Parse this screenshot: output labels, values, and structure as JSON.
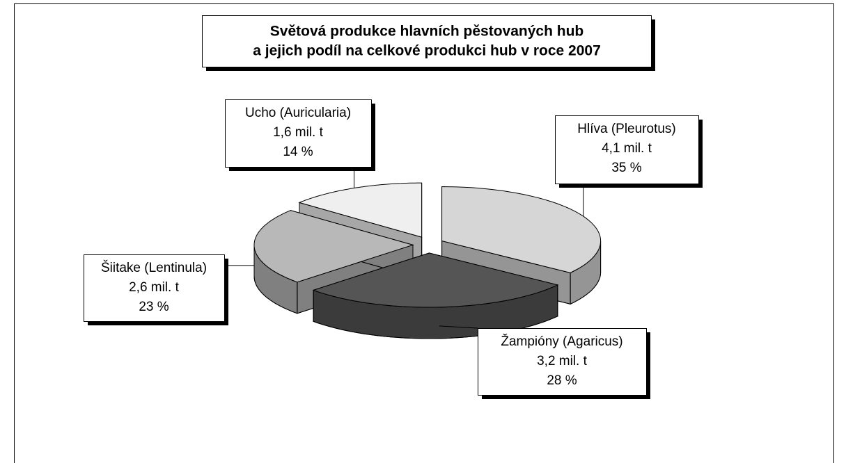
{
  "chart_data": {
    "type": "pie",
    "title": [
      "Světová produkce hlavních pěstovaných hub",
      "a jejich podíl na celkové produkci hub v roce 2007"
    ],
    "categories": [
      "Hlíva (Pleurotus)",
      "Žampióny (Agaricus)",
      "Šiitake (Lentinula)",
      "Ucho (Auricularia)"
    ],
    "amount_labels": [
      "4,1 mil. t",
      "3,2 mil. t",
      "2,6 mil. t",
      "1,6 mil. t"
    ],
    "values": [
      35,
      28,
      23,
      14
    ],
    "value_labels": [
      "35 %",
      "28 %",
      "23 %",
      "14 %"
    ],
    "colors": [
      "#d6d6d6",
      "#555555",
      "#b8b8b8",
      "#efefef"
    ]
  }
}
